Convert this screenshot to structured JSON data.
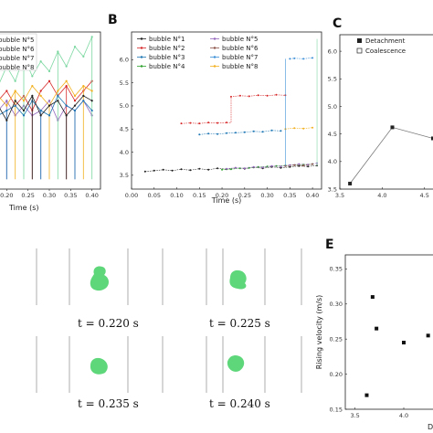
{
  "panels": {
    "b": "B",
    "c": "C",
    "e": "E"
  },
  "captions": {
    "t1": "t = 0.220 s",
    "t2": "t = 0.225 s",
    "t3": "t = 0.235 s",
    "t4": "t = 0.240 s"
  },
  "colors": {
    "b1": "#222222",
    "b2": "#d62728",
    "b3": "#1f77b4",
    "b4": "#2ca02c",
    "b5": "#9467bd",
    "b6": "#8c564b",
    "b7": "#7bd7a0",
    "b8": "#f2b01e",
    "bubble": "#5ed67a"
  },
  "chart_data": [
    {
      "id": "A",
      "type": "line",
      "xlabel": "Time (s)",
      "xticks": [
        "0.20",
        "0.25",
        "0.30",
        "0.35",
        "0.40"
      ],
      "xlim": [
        0.18,
        0.42
      ],
      "ylim": [
        3.4,
        6.6
      ],
      "legend": [
        "bubble N°5",
        "bubble N°6",
        "bubble N°7",
        "bubble N°8"
      ],
      "series": [
        {
          "name": "bubble N°5",
          "color": "#9467bd",
          "x": [
            0.18,
            0.2,
            0.22,
            0.24,
            0.26,
            0.28,
            0.3,
            0.32,
            0.34,
            0.36,
            0.38,
            0.4
          ],
          "y": [
            5.0,
            5.2,
            4.9,
            5.1,
            4.9,
            5.0,
            5.2,
            4.8,
            5.1,
            5.0,
            5.2,
            4.9
          ]
        },
        {
          "name": "bubble N°6",
          "color": "#d62728",
          "x": [
            0.18,
            0.2,
            0.22,
            0.24,
            0.26,
            0.28,
            0.3,
            0.32,
            0.34,
            0.36,
            0.38,
            0.4
          ],
          "y": [
            5.2,
            5.4,
            5.1,
            5.3,
            5.0,
            5.4,
            5.6,
            5.3,
            5.5,
            5.2,
            5.4,
            5.6
          ]
        },
        {
          "name": "bubble N°7",
          "color": "#7bd7a0",
          "x": [
            0.18,
            0.2,
            0.22,
            0.24,
            0.26,
            0.28,
            0.3,
            0.32,
            0.34,
            0.36,
            0.38,
            0.4
          ],
          "y": [
            5.5,
            5.9,
            5.6,
            6.1,
            5.7,
            6.0,
            5.8,
            6.2,
            5.9,
            6.3,
            6.1,
            6.5
          ]
        },
        {
          "name": "bubble N°8",
          "color": "#f2b01e",
          "x": [
            0.18,
            0.2,
            0.22,
            0.24,
            0.26,
            0.28,
            0.3,
            0.32,
            0.34,
            0.36,
            0.38,
            0.4
          ],
          "y": [
            5.3,
            5.1,
            5.4,
            5.2,
            5.5,
            5.3,
            5.1,
            5.4,
            5.6,
            5.3,
            5.5,
            5.4
          ]
        },
        {
          "name": "",
          "color": "#1f77b4",
          "x": [
            0.18,
            0.2,
            0.22,
            0.24,
            0.26,
            0.28,
            0.3,
            0.32,
            0.34,
            0.36,
            0.38,
            0.4
          ],
          "y": [
            4.9,
            5.0,
            5.1,
            4.9,
            5.2,
            5.0,
            4.9,
            5.3,
            5.1,
            5.0,
            5.2,
            5.0
          ]
        },
        {
          "name": "",
          "color": "#222222",
          "x": [
            0.18,
            0.2,
            0.22,
            0.24,
            0.26,
            0.28,
            0.3,
            0.32,
            0.34,
            0.36,
            0.38,
            0.4
          ],
          "y": [
            5.1,
            4.8,
            5.2,
            5.0,
            5.3,
            4.9,
            5.1,
            5.2,
            4.9,
            5.1,
            5.3,
            5.2
          ]
        }
      ]
    },
    {
      "id": "B",
      "type": "scatter",
      "xlabel": "Time (s)",
      "xlim": [
        0.0,
        0.42
      ],
      "ylim": [
        3.2,
        6.6
      ],
      "xticks": [
        "0.00",
        "0.05",
        "0.10",
        "0.15",
        "0.20",
        "0.25",
        "0.30",
        "0.35",
        "0.40"
      ],
      "yticks": [
        "3.5",
        "4.0",
        "4.5",
        "5.0",
        "5.5",
        "6.0"
      ],
      "legend": [
        "bubble N°1",
        "bubble N°2",
        "bubble N°3",
        "bubble N°4",
        "bubble N°5",
        "bubble N°6",
        "bubble N°7",
        "bubble N°8"
      ],
      "series": [
        {
          "name": "bubble N°1",
          "color": "#222222",
          "x": [
            0.03,
            0.05,
            0.07,
            0.09,
            0.11,
            0.13,
            0.15,
            0.17,
            0.19,
            0.21,
            0.23,
            0.25,
            0.27,
            0.29,
            0.31,
            0.33,
            0.35,
            0.37,
            0.39,
            0.41
          ],
          "y": [
            3.58,
            3.6,
            3.62,
            3.6,
            3.63,
            3.61,
            3.64,
            3.62,
            3.65,
            3.63,
            3.66,
            3.64,
            3.67,
            3.65,
            3.68,
            3.66,
            3.68,
            3.7,
            3.69,
            3.71
          ]
        },
        {
          "name": "bubble N°2",
          "color": "#d62728",
          "x": [
            0.11,
            0.13,
            0.15,
            0.17,
            0.19,
            0.21,
            0.22,
            0.24,
            0.26,
            0.28,
            0.3,
            0.32,
            0.34
          ],
          "y": [
            4.62,
            4.63,
            4.62,
            4.64,
            4.63,
            4.64,
            5.2,
            5.22,
            5.21,
            5.23,
            5.22,
            5.24,
            5.23
          ]
        },
        {
          "name": "bubble N°3",
          "color": "#1f77b4",
          "x": [
            0.15,
            0.17,
            0.19,
            0.21,
            0.23,
            0.25,
            0.27,
            0.29,
            0.31,
            0.33
          ],
          "y": [
            4.38,
            4.4,
            4.39,
            4.41,
            4.42,
            4.43,
            4.45,
            4.44,
            4.47,
            4.46
          ]
        },
        {
          "name": "bubble N°4",
          "color": "#2ca02c",
          "x": [
            0.2,
            0.22,
            0.24,
            0.26,
            0.28,
            0.3,
            0.32,
            0.34,
            0.36,
            0.38,
            0.4
          ],
          "y": [
            3.62,
            3.63,
            3.65,
            3.66,
            3.68,
            3.69,
            3.7,
            3.71,
            3.72,
            3.73,
            3.74
          ]
        },
        {
          "name": "bubble N°5",
          "color": "#9467bd",
          "x": [
            0.21,
            0.23,
            0.25,
            0.27,
            0.29,
            0.31,
            0.33,
            0.35,
            0.37,
            0.39,
            0.41
          ],
          "y": [
            3.64,
            3.66,
            3.65,
            3.68,
            3.67,
            3.7,
            3.69,
            3.72,
            3.74,
            3.73,
            3.76
          ]
        },
        {
          "name": "bubble N°6",
          "color": "#8c564b",
          "x": [
            0.34,
            0.36,
            0.38,
            0.4
          ],
          "y": [
            3.7,
            3.72,
            3.71,
            3.74
          ]
        },
        {
          "name": "bubble N°7",
          "color": "#3b8fd6",
          "x": [
            0.35,
            0.36,
            0.38,
            0.4
          ],
          "y": [
            6.02,
            6.03,
            6.02,
            6.04
          ]
        },
        {
          "name": "bubble N°8",
          "color": "#f2b01e",
          "x": [
            0.34,
            0.36,
            0.38,
            0.4
          ],
          "y": [
            4.5,
            4.52,
            4.51,
            4.53
          ]
        }
      ]
    },
    {
      "id": "C",
      "type": "line",
      "xlim": [
        3.5,
        4.6
      ],
      "ylim": [
        3.5,
        6.3
      ],
      "xticks": [
        "3.5",
        "4.0",
        "4.5"
      ],
      "yticks": [
        "3.5",
        "4.0",
        "4.5",
        "5.0",
        "5.5",
        "6.0"
      ],
      "legend": [
        "Detachment",
        "Coalescence"
      ],
      "series": [
        {
          "name": "Detachment",
          "color": "#333333",
          "x": [
            3.62,
            4.12,
            4.6
          ],
          "y": [
            3.6,
            4.62,
            4.42
          ]
        }
      ]
    },
    {
      "id": "E",
      "type": "scatter",
      "xlim": [
        3.4,
        4.3
      ],
      "ylim": [
        0.15,
        0.37
      ],
      "xticks": [
        "3.5",
        "4.0"
      ],
      "yticks": [
        "0.15",
        "0.20",
        "0.25",
        "0.30",
        "0.35"
      ],
      "ylabel": "Rising velocity (m/s)",
      "xlabel_partial": "D",
      "series": [
        {
          "name": "",
          "color": "#111111",
          "x": [
            3.62,
            3.68,
            3.72,
            4.0,
            4.25
          ],
          "y": [
            0.17,
            0.31,
            0.265,
            0.245,
            0.255
          ]
        }
      ]
    }
  ]
}
